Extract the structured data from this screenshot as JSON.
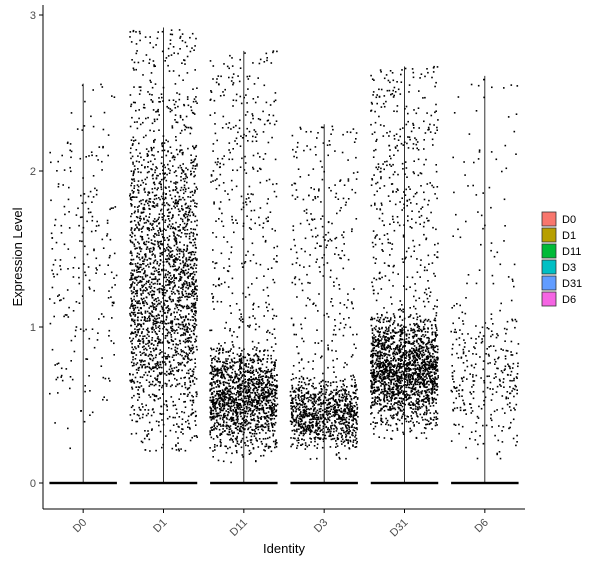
{
  "chart_data": {
    "type": "scatter",
    "subtype": "violin-jitter",
    "title": "",
    "xlabel": "Identity",
    "ylabel": "Expression Level",
    "categories": [
      "D0",
      "D1",
      "D11",
      "D3",
      "D31",
      "D6"
    ],
    "ylim": [
      -0.15,
      3.08
    ],
    "yticks": [
      0,
      1,
      2,
      3
    ],
    "grid": false,
    "legend": {
      "position": "right",
      "entries": [
        {
          "label": "D0",
          "color": "#F8766D"
        },
        {
          "label": "D1",
          "color": "#B79F00"
        },
        {
          "label": "D11",
          "color": "#00BA38"
        },
        {
          "label": "D3",
          "color": "#00BFC4"
        },
        {
          "label": "D31",
          "color": "#619CFF"
        },
        {
          "label": "D6",
          "color": "#F564E3"
        }
      ]
    },
    "max_values": [
      2.56,
      2.92,
      2.77,
      2.3,
      2.67,
      2.61
    ],
    "point_distributions": [
      {
        "identity": "D0",
        "n_points": 240,
        "min": 0.2,
        "max": 2.56,
        "dense_low": 0.3,
        "dense_high": 2.5
      },
      {
        "identity": "D1",
        "n_points": 2300,
        "min": 0.2,
        "max": 2.92,
        "dense_low": 0.3,
        "dense_high": 2.3
      },
      {
        "identity": "D11",
        "n_points": 1800,
        "min": 0.13,
        "max": 2.77,
        "dense_low": 0.2,
        "dense_high": 0.9
      },
      {
        "identity": "D3",
        "n_points": 1200,
        "min": 0.15,
        "max": 2.3,
        "dense_low": 0.2,
        "dense_high": 0.7
      },
      {
        "identity": "D31",
        "n_points": 2200,
        "min": 0.28,
        "max": 2.67,
        "dense_low": 0.35,
        "dense_high": 1.1
      },
      {
        "identity": "D6",
        "n_points": 360,
        "min": 0.15,
        "max": 2.61,
        "dense_low": 0.2,
        "dense_high": 1.2
      }
    ],
    "point_color": "#000000"
  }
}
